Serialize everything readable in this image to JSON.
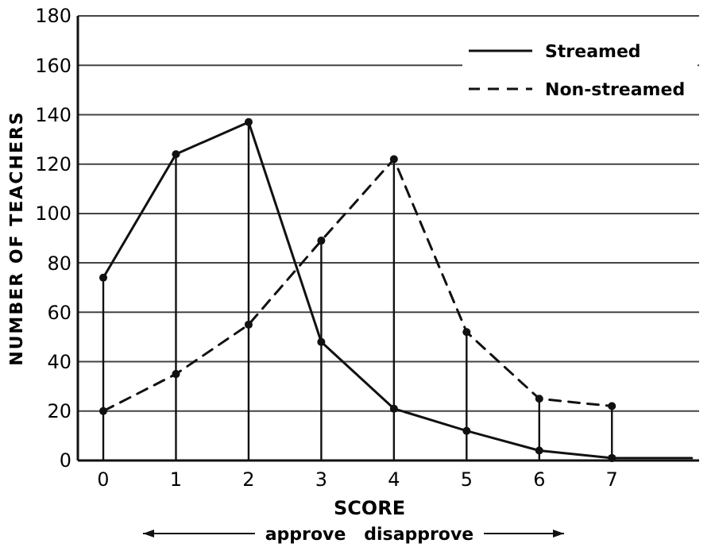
{
  "chart_data": {
    "type": "line",
    "xlabel": "SCORE",
    "ylabel": "NUMBER OF TEACHERS",
    "annotations": [
      "approve   disapprove"
    ],
    "xlim": [
      -0.35,
      8.2
    ],
    "xticks": [
      0,
      1,
      2,
      3,
      4,
      5,
      6,
      7
    ],
    "ylim": [
      0,
      180
    ],
    "yticks": [
      0,
      20,
      40,
      60,
      80,
      100,
      120,
      140,
      160,
      180
    ],
    "grid": "y",
    "legend": "top right",
    "marker": "circle",
    "series": [
      {
        "name": "Streamed",
        "color": "#111111",
        "line_style": "solid",
        "x": [
          0,
          1,
          2,
          3,
          4,
          5,
          6,
          7,
          8.1
        ],
        "values": [
          74,
          124,
          137,
          48,
          21,
          12,
          4,
          1,
          1
        ],
        "errors": [
          [
            0,
            74
          ],
          [
            0,
            124
          ],
          [
            0,
            137
          ],
          null,
          null,
          null,
          null,
          null,
          null
        ]
      },
      {
        "name": "Non-streamed",
        "color": "#111111",
        "line_style": "dashed",
        "x": [
          0,
          1,
          2,
          3,
          4,
          5,
          6,
          7
        ],
        "values": [
          20,
          35,
          55,
          89,
          122,
          52,
          25,
          22
        ],
        "errors": [
          null,
          null,
          null,
          [
            0,
            89
          ],
          [
            0,
            122
          ],
          [
            0,
            52
          ],
          [
            0,
            25
          ],
          [
            0,
            22
          ]
        ]
      }
    ]
  }
}
